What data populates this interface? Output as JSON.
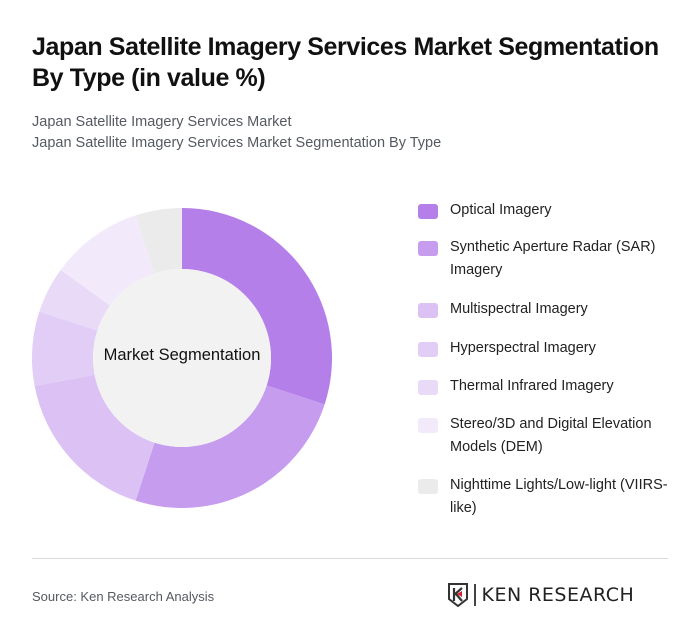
{
  "header": {
    "title": "Japan Satellite Imagery Services Market Segmentation By Type (in value %)",
    "subtitle_1": "Japan Satellite Imagery Services Market",
    "subtitle_2": "Japan Satellite Imagery Services Market Segmentation By Type"
  },
  "chart_data": {
    "type": "pie",
    "variant": "donut",
    "title": "Japan Satellite Imagery Services Market Segmentation By Type (in value %)",
    "center_label": "Market Segmentation",
    "categories": [
      "Optical Imagery",
      "Synthetic Aperture Radar (SAR) Imagery",
      "Multispectral Imagery",
      "Hyperspectral Imagery",
      "Thermal Infrared Imagery",
      "Stereo/3D and Digital Elevation Models (DEM)",
      "Nighttime Lights/Low-light (VIIRS-like)"
    ],
    "values": [
      30,
      25,
      17,
      8,
      5,
      10,
      5
    ],
    "colors": [
      "#b57fe9",
      "#c69cee",
      "#dcc1f5",
      "#e2cdf6",
      "#e9dbf8",
      "#f2eafb",
      "#ebebeb"
    ],
    "legend_position": "right"
  },
  "legend": {
    "items": [
      {
        "label": "Optical Imagery",
        "color": "#b57fe9"
      },
      {
        "label": "Synthetic Aperture Radar (SAR) Imagery",
        "color": "#c69cee"
      },
      {
        "label": "Multispectral Imagery",
        "color": "#dcc1f5"
      },
      {
        "label": "Hyperspectral Imagery",
        "color": "#e2cdf6"
      },
      {
        "label": "Thermal Infrared Imagery",
        "color": "#e9dbf8"
      },
      {
        "label": "Stereo/3D and Digital Elevation Models (DEM)",
        "color": "#f2eafb"
      },
      {
        "label": "Nighttime Lights/Low-light (VIIRS-like)",
        "color": "#ebebeb"
      }
    ]
  },
  "footer": {
    "source": "Source: Ken Research Analysis",
    "logo_text": "KEN RESEARCH"
  }
}
